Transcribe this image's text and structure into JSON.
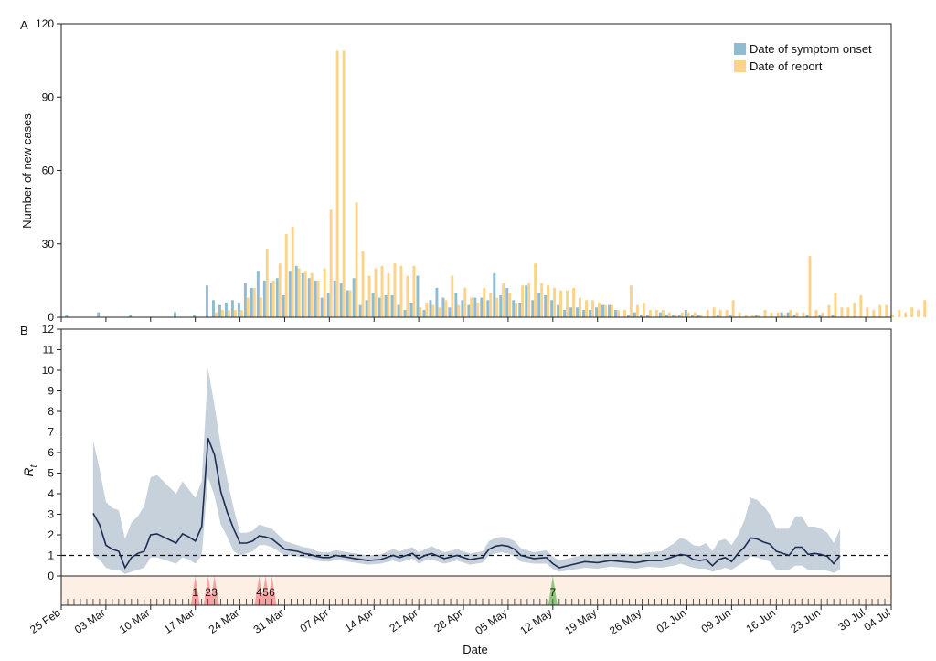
{
  "chart_data": [
    {
      "panel_label": "A",
      "type": "bar",
      "ylabel": "Number of new cases",
      "xlabel": "Date",
      "ylim": [
        0,
        120
      ],
      "yticks": [
        0,
        30,
        60,
        90,
        120
      ],
      "x_start": "25 Feb",
      "x_tick_labels": [
        "25 Feb",
        "03 Mar",
        "10 Mar",
        "17 Mar",
        "24 Mar",
        "31 Mar",
        "07 Apr",
        "14 Apr",
        "21 Apr",
        "28 Apr",
        "05 May",
        "12 May",
        "19 May",
        "26 May",
        "02 Jun",
        "09 Jun",
        "16 Jun",
        "23 Jun",
        "30 Jul",
        "04 Jul"
      ],
      "legend": {
        "position": "top-right",
        "entries": [
          "Date of symptom onset",
          "Date of report"
        ]
      },
      "series": [
        {
          "name": "Date of symptom onset",
          "color": "#8fbcd1",
          "values": [
            0,
            1,
            0,
            0,
            0,
            0,
            2,
            0,
            0,
            0,
            0,
            1,
            0,
            0,
            0,
            0,
            0,
            0,
            2,
            0,
            0,
            1,
            0,
            13,
            7,
            5,
            6,
            7,
            6,
            14,
            12,
            19,
            15,
            14,
            16,
            9,
            19,
            21,
            18,
            16,
            15,
            8,
            10,
            15,
            14,
            11,
            16,
            5,
            7,
            10,
            8,
            9,
            9,
            5,
            3,
            6,
            17,
            3,
            7,
            12,
            8,
            4,
            10,
            7,
            5,
            8,
            8,
            7,
            18,
            9,
            12,
            7,
            6,
            13,
            7,
            10,
            9,
            7,
            5,
            3,
            4,
            4,
            3,
            3,
            4,
            5,
            5,
            3,
            0,
            1,
            2,
            1,
            1,
            0,
            2,
            1,
            1,
            1,
            3,
            1,
            1,
            0,
            0,
            1,
            0,
            1,
            0,
            0,
            0,
            1,
            0,
            0,
            0,
            2,
            2,
            1,
            0,
            1,
            0,
            1,
            0,
            1,
            0,
            0,
            0,
            0,
            0,
            0,
            0,
            0,
            0,
            0,
            0
          ]
        },
        {
          "name": "Date of report",
          "color": "#fcd388",
          "values": [
            0,
            0,
            0,
            0,
            0,
            0,
            0,
            0,
            0,
            0,
            0,
            0,
            0,
            0,
            0,
            0,
            0,
            0,
            0,
            0,
            0,
            0,
            0,
            0,
            2,
            3,
            3,
            3,
            3,
            8,
            12,
            8,
            28,
            15,
            22,
            34,
            37,
            20,
            19,
            18,
            15,
            20,
            44,
            109,
            109,
            11,
            47,
            27,
            17,
            20,
            21,
            18,
            22,
            21,
            17,
            21,
            4,
            6,
            5,
            4,
            7,
            17,
            5,
            12,
            8,
            6,
            12,
            10,
            8,
            14,
            10,
            6,
            13,
            14,
            22,
            14,
            13,
            12,
            11,
            11,
            12,
            8,
            7,
            7,
            6,
            5,
            5,
            3,
            3,
            13,
            5,
            6,
            3,
            3,
            3,
            2,
            1,
            2,
            2,
            2,
            1,
            3,
            4,
            3,
            3,
            7,
            2,
            1,
            1,
            1,
            3,
            2,
            2,
            1,
            3,
            2,
            2,
            25,
            3,
            2,
            5,
            10,
            4,
            4,
            6,
            9,
            4,
            3,
            5,
            5,
            1,
            3,
            2,
            4,
            3,
            7
          ]
        }
      ]
    },
    {
      "panel_label": "B",
      "type": "line",
      "ylabel": "R",
      "ylabel_sub": "t",
      "xlabel": "Date",
      "ylim": [
        0,
        12
      ],
      "yticks": [
        0,
        1,
        2,
        3,
        4,
        5,
        6,
        7,
        8,
        9,
        10,
        11,
        12
      ],
      "reference_line": 1,
      "x_tick_labels": [
        "25 Feb",
        "03 Mar",
        "10 Mar",
        "17 Mar",
        "24 Mar",
        "31 Mar",
        "07 Apr",
        "14 Apr",
        "21 Apr",
        "28 Apr",
        "05 May",
        "12 May",
        "19 May",
        "26 May",
        "02 Jun",
        "09 Jun",
        "16 Jun",
        "23 Jun",
        "30 Jul",
        "04 Jul"
      ],
      "series": [
        {
          "name": "",
          "color": "#1f2d55",
          "band_color": "#c7d1db",
          "points": [
            [
              5,
              3.05,
              1.0,
              6.6
            ],
            [
              6,
              2.5,
              0.8,
              5.2
            ],
            [
              7,
              1.5,
              0.4,
              3.6
            ],
            [
              8,
              1.3,
              0.3,
              3.3
            ],
            [
              9,
              1.2,
              0.3,
              3.2
            ],
            [
              10,
              0.4,
              0.1,
              1.8
            ],
            [
              11,
              0.9,
              0.2,
              2.6
            ],
            [
              12,
              1.1,
              0.3,
              2.9
            ],
            [
              13,
              1.2,
              0.4,
              3.4
            ],
            [
              14,
              2.0,
              0.9,
              4.8
            ],
            [
              15,
              2.05,
              0.9,
              4.9
            ],
            [
              16,
              1.9,
              0.8,
              4.6
            ],
            [
              17,
              1.75,
              0.7,
              4.3
            ],
            [
              18,
              1.6,
              0.6,
              4.0
            ],
            [
              19,
              2.05,
              0.9,
              4.6
            ],
            [
              20,
              1.9,
              0.8,
              4.2
            ],
            [
              21,
              1.7,
              0.6,
              3.8
            ],
            [
              22,
              2.4,
              1.0,
              4.6
            ],
            [
              23,
              6.7,
              4.8,
              10.1
            ],
            [
              24,
              5.9,
              3.9,
              8.3
            ],
            [
              25,
              4.1,
              2.5,
              6.3
            ],
            [
              26,
              3.1,
              1.9,
              4.7
            ],
            [
              27,
              2.3,
              1.2,
              3.3
            ],
            [
              28,
              1.6,
              1.0,
              2.1
            ],
            [
              29,
              1.6,
              1.1,
              2.1
            ],
            [
              30,
              1.7,
              1.2,
              2.2
            ],
            [
              31,
              1.95,
              1.5,
              2.5
            ],
            [
              32,
              1.9,
              1.5,
              2.4
            ],
            [
              33,
              1.8,
              1.4,
              2.3
            ],
            [
              34,
              1.55,
              1.2,
              2.0
            ],
            [
              35,
              1.3,
              1.0,
              1.7
            ],
            [
              36,
              1.25,
              1.0,
              1.6
            ],
            [
              37,
              1.2,
              0.95,
              1.5
            ],
            [
              38,
              1.1,
              0.9,
              1.4
            ],
            [
              39,
              1.05,
              0.85,
              1.35
            ],
            [
              40,
              0.95,
              0.75,
              1.2
            ],
            [
              41,
              0.9,
              0.7,
              1.15
            ],
            [
              42,
              0.9,
              0.7,
              1.15
            ],
            [
              43,
              1.0,
              0.8,
              1.25
            ],
            [
              44,
              0.95,
              0.75,
              1.2
            ],
            [
              46,
              0.85,
              0.65,
              1.1
            ],
            [
              48,
              0.75,
              0.55,
              1.0
            ],
            [
              50,
              0.8,
              0.6,
              1.05
            ],
            [
              52,
              1.0,
              0.75,
              1.3
            ],
            [
              53,
              0.9,
              0.65,
              1.2
            ],
            [
              55,
              1.1,
              0.85,
              1.4
            ],
            [
              56,
              0.85,
              0.6,
              1.15
            ],
            [
              57,
              1.0,
              0.75,
              1.3
            ],
            [
              58,
              1.1,
              0.8,
              1.45
            ],
            [
              60,
              0.85,
              0.6,
              1.15
            ],
            [
              62,
              1.0,
              0.75,
              1.3
            ],
            [
              64,
              0.8,
              0.55,
              1.1
            ],
            [
              66,
              0.9,
              0.65,
              1.2
            ],
            [
              67,
              1.3,
              1.0,
              1.7
            ],
            [
              68,
              1.45,
              1.1,
              1.85
            ],
            [
              69,
              1.5,
              1.15,
              1.9
            ],
            [
              70,
              1.45,
              1.1,
              1.85
            ],
            [
              71,
              1.3,
              0.95,
              1.7
            ],
            [
              72,
              1.0,
              0.7,
              1.35
            ],
            [
              74,
              0.85,
              0.6,
              1.15
            ],
            [
              76,
              0.9,
              0.6,
              1.25
            ],
            [
              77,
              0.6,
              0.35,
              0.95
            ],
            [
              78,
              0.4,
              0.2,
              0.75
            ],
            [
              80,
              0.55,
              0.3,
              0.9
            ],
            [
              82,
              0.7,
              0.4,
              1.05
            ],
            [
              84,
              0.65,
              0.35,
              1.05
            ],
            [
              86,
              0.75,
              0.45,
              1.1
            ],
            [
              88,
              0.7,
              0.4,
              1.1
            ],
            [
              90,
              0.65,
              0.35,
              1.05
            ],
            [
              92,
              0.75,
              0.45,
              1.15
            ],
            [
              94,
              0.75,
              0.4,
              1.2
            ],
            [
              96,
              0.95,
              0.5,
              1.6
            ],
            [
              97,
              1.05,
              0.6,
              1.85
            ],
            [
              98,
              1.0,
              0.5,
              1.75
            ],
            [
              99,
              0.8,
              0.4,
              1.5
            ],
            [
              100,
              0.75,
              0.35,
              1.45
            ],
            [
              101,
              0.8,
              0.35,
              1.6
            ],
            [
              102,
              0.5,
              0.2,
              1.2
            ],
            [
              103,
              0.8,
              0.3,
              1.7
            ],
            [
              104,
              0.9,
              0.4,
              1.8
            ],
            [
              105,
              0.7,
              0.3,
              1.5
            ],
            [
              106,
              1.1,
              0.5,
              2.0
            ],
            [
              107,
              1.4,
              0.7,
              2.7
            ],
            [
              108,
              1.85,
              0.95,
              3.8
            ],
            [
              109,
              1.8,
              0.9,
              3.7
            ],
            [
              110,
              1.65,
              0.8,
              3.4
            ],
            [
              111,
              1.55,
              0.7,
              3.0
            ],
            [
              112,
              1.2,
              0.3,
              2.3
            ],
            [
              113,
              1.1,
              0.3,
              2.3
            ],
            [
              114,
              1.0,
              0.3,
              2.3
            ],
            [
              115,
              1.4,
              0.5,
              2.9
            ],
            [
              116,
              1.4,
              0.5,
              2.9
            ],
            [
              117,
              1.05,
              0.3,
              2.4
            ],
            [
              118,
              1.1,
              0.3,
              2.4
            ],
            [
              119,
              1.05,
              0.3,
              2.3
            ],
            [
              120,
              0.95,
              0.25,
              2.1
            ],
            [
              121,
              0.6,
              0.15,
              1.6
            ],
            [
              122,
              1.0,
              0.3,
              2.3
            ]
          ]
        }
      ],
      "event_markers": {
        "color_red": "#f4a3a3",
        "color_green": "#8cc97a",
        "band_color": "#fdefe4",
        "items": [
          {
            "label": "1",
            "day": 21,
            "color": "red"
          },
          {
            "label": "2",
            "day": 23,
            "color": "red"
          },
          {
            "label": "3",
            "day": 24,
            "color": "red"
          },
          {
            "label": "4",
            "day": 31,
            "color": "red"
          },
          {
            "label": "5",
            "day": 32,
            "color": "red"
          },
          {
            "label": "6",
            "day": 33,
            "color": "red"
          }
        ],
        "items_green": [
          {
            "label": "7",
            "day": 77,
            "color": "green"
          }
        ]
      }
    }
  ]
}
